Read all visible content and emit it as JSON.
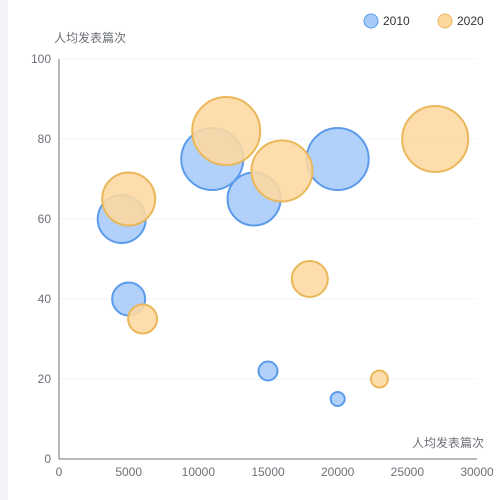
{
  "chart_data": {
    "type": "scatter",
    "subtype": "bubble",
    "title": "",
    "xlabel": "人均发表篇次",
    "ylabel": "人均发表篇次",
    "xlim": [
      0,
      30000
    ],
    "ylim": [
      0,
      100
    ],
    "xticks": [
      0,
      5000,
      10000,
      15000,
      20000,
      25000,
      30000
    ],
    "yticks": [
      0,
      20,
      40,
      60,
      80,
      100
    ],
    "grid": "horizontal",
    "legend_position": "top-right",
    "series": [
      {
        "name": "2010",
        "color": "#a6cbfa",
        "stroke": "#5b9bea",
        "points": [
          {
            "x": 4500,
            "y": 60,
            "size": 48
          },
          {
            "x": 5000,
            "y": 40,
            "size": 33
          },
          {
            "x": 11000,
            "y": 75,
            "size": 62
          },
          {
            "x": 14000,
            "y": 65,
            "size": 53
          },
          {
            "x": 15000,
            "y": 22,
            "size": 19
          },
          {
            "x": 20000,
            "y": 75,
            "size": 62
          },
          {
            "x": 20000,
            "y": 15,
            "size": 14
          }
        ]
      },
      {
        "name": "2020",
        "color": "#fdd89f",
        "stroke": "#eab75a",
        "points": [
          {
            "x": 5000,
            "y": 65,
            "size": 53
          },
          {
            "x": 6000,
            "y": 35,
            "size": 29
          },
          {
            "x": 12000,
            "y": 82,
            "size": 68
          },
          {
            "x": 16000,
            "y": 72,
            "size": 61
          },
          {
            "x": 18000,
            "y": 45,
            "size": 36
          },
          {
            "x": 23000,
            "y": 20,
            "size": 17
          },
          {
            "x": 27000,
            "y": 80,
            "size": 66
          }
        ]
      }
    ]
  }
}
